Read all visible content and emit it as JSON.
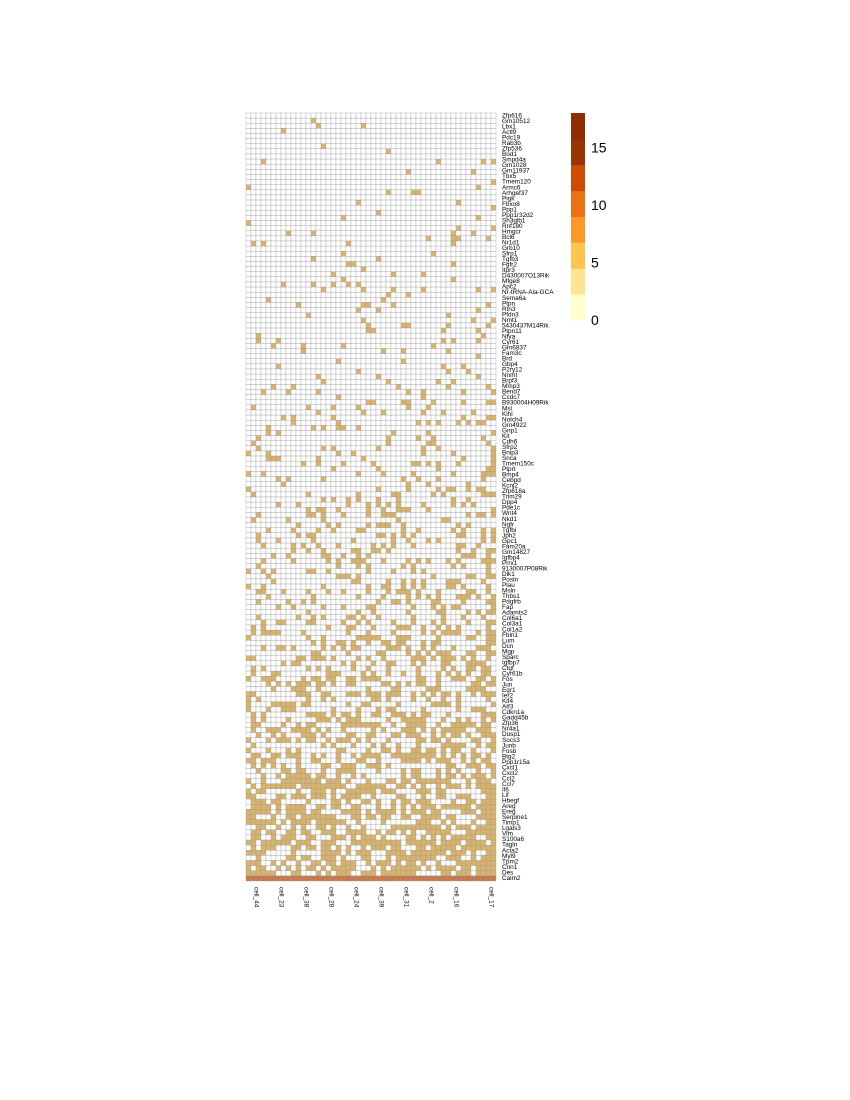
{
  "chart_data": {
    "type": "heatmap",
    "title": "",
    "xlabel": "",
    "ylabel": "",
    "row_labels_shown": [
      "Zfp616",
      "Gm10512",
      "Lbx1",
      "Actl9",
      "Pdc19",
      "Rab3b",
      "Zfp536",
      "Bod1",
      "Smpd4a",
      "Gm1028",
      "Gm11937",
      "Tbx5",
      "Tmem120",
      "Armc6",
      "Arhgef37",
      "Pigk",
      "Fbxo8",
      "Ppp1",
      "Ppp1r32d2",
      "Sh3glb1",
      "Rnf180",
      "Hmgcr",
      "Bcl6",
      "Nr1d1",
      "Grb10",
      "Sfrp1",
      "Tgfb3",
      "Fgfr2",
      "Itpr3",
      "D430007O13Rik",
      "Mfge8",
      "Apc2",
      "Nr-tRNA-Ala-GCA",
      "Sema6a",
      "Ptpn",
      "Rtn3",
      "Pfdn3",
      "Nmt1",
      "5430437M14Rik",
      "Ptpn11",
      "Nfya",
      "Cyr61",
      "Gm6837",
      "Fam3c",
      "Brd",
      "Gbp4",
      "P2ry12",
      "Nnmt",
      "Brpf3",
      "Mmp3",
      "Bend7",
      "Ccdc7",
      "B930004H09Rik",
      "Msl",
      "Klhl",
      "Notch4",
      "Gm4922",
      "Gnp1",
      "Kit",
      "Cdh6",
      "Sfrp2",
      "Bnip3",
      "Snca",
      "Tmem150c",
      "Ptprt",
      "Bmp4",
      "Cebpd",
      "Kcnj2",
      "Zfp618a",
      "Trim29",
      "Dpp4",
      "Pde1c",
      "Wnt4",
      "Nkd1",
      "Ngfr",
      "Tgfbi",
      "Jph2",
      "Gpc1",
      "Fam20a",
      "Gm14827",
      "Igfbp4",
      "Prrx1",
      "9130007P08Rik",
      "Dlk1",
      "Postn",
      "Plau",
      "Msln",
      "Thbs1",
      "Pdgfrb",
      "Fap",
      "Adamts2",
      "Col6a1",
      "Col3a1",
      "Col1a2",
      "Fbln1",
      "Lum",
      "Dcn",
      "Mgp",
      "Sparc",
      "Igfbp7",
      "Ctgf",
      "Cyr61b",
      "Fos",
      "Jun",
      "Egr1",
      "Ier2",
      "Klf4",
      "Atf3",
      "Cdkn1a",
      "Gadd45b",
      "Zfp36",
      "Nr4a1",
      "Dusp1",
      "Socs3",
      "Junb",
      "Fosb",
      "Btg2",
      "Ppp1r15a",
      "Cxcl1",
      "Cxcl2",
      "Ccl2",
      "Ccl7",
      "Il6",
      "Lif",
      "Hbegf",
      "Areg",
      "Ereg",
      "Serpine1",
      "Timp1",
      "Lgals3",
      "Vim",
      "S100a6",
      "Tagln",
      "Acta2",
      "Myl9",
      "Tpm2",
      "Cnn1",
      "Des",
      "Calm2"
    ],
    "column_labels_shown": [
      "cell_44",
      "cell_23",
      "cell_38",
      "cell_28",
      "cell_24",
      "cell_39",
      "cell_31",
      "cell_2",
      "cell_16",
      "cell_17"
    ],
    "legend": {
      "type": "stepped-color-scale",
      "ticks": [
        0,
        5,
        10,
        15
      ],
      "min": 0,
      "max": 18,
      "bin_colors": [
        "#FFFFCC",
        "#FEE391",
        "#FEC44F",
        "#FE9929",
        "#EC7014",
        "#CC4C02",
        "#993404",
        "#8C2D04"
      ],
      "position": "right"
    },
    "value_range": [
      0,
      18
    ],
    "grid": true,
    "n_rows": 150,
    "n_cols": 50,
    "cell_empty_color": "#FFFFFF",
    "cell_low_color": "#D9B36A",
    "cell_high_color": "#C9784A"
  }
}
